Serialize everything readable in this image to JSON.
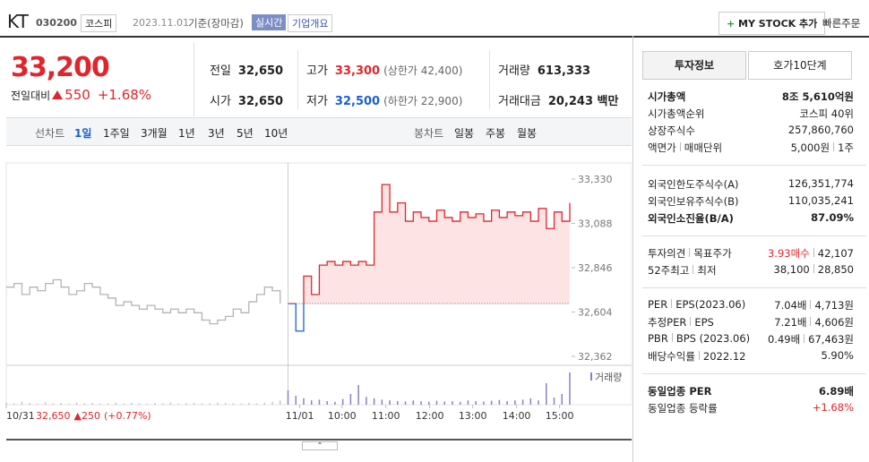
{
  "header": {
    "name": "KT",
    "code": "030200",
    "market": "코스피",
    "date": "2023.11.01",
    "basis": "기준(장마감)",
    "realtime": "실시간",
    "company": "기업개요",
    "mystock": "MY STOCK 추가",
    "quick": "빠른주문"
  },
  "price": {
    "value": "33,200",
    "change_label": "전일대비",
    "change": "550",
    "rate": "+1.68%"
  },
  "summary": [
    {
      "label": "전일",
      "value": "32,650"
    },
    {
      "label": "고가",
      "value": "33,300",
      "note": "(상한가 42,400)"
    },
    {
      "label": "거래량",
      "value": "613,333"
    },
    {
      "label": "시가",
      "value": "32,650"
    },
    {
      "label": "저가",
      "value": "32,500",
      "note": "(하한가 22,900)"
    },
    {
      "label": "거래대금",
      "value": "20,243 백만"
    }
  ],
  "tabs": {
    "line": "선차트",
    "periods": [
      "1일",
      "1주일",
      "3개월",
      "1년",
      "3년",
      "5년",
      "10년"
    ],
    "candle": "봉차트",
    "candles": [
      "일봉",
      "주봉",
      "월봉"
    ]
  },
  "chart_data": {
    "type": "line",
    "xlim": [
      0,
      72
    ],
    "xticks": [
      {
        "value": 0,
        "label": "10/31"
      },
      {
        "value": 37.5,
        "label": "11/01"
      },
      {
        "value": 42.9,
        "label": "10:00"
      },
      {
        "value": 48.5,
        "label": "11:00"
      },
      {
        "value": 54.1,
        "label": "12:00"
      },
      {
        "value": 59.6,
        "label": "13:00"
      },
      {
        "value": 65.2,
        "label": "14:00"
      },
      {
        "value": 70.7,
        "label": "15:00"
      }
    ],
    "ylim": [
      32362,
      33330
    ],
    "yticks": [
      {
        "value": 33330,
        "label": "33,330"
      },
      {
        "value": 33088,
        "label": "33,088"
      },
      {
        "value": 32846,
        "label": "32,846"
      },
      {
        "value": 32604,
        "label": "32,604"
      },
      {
        "value": 32362,
        "label": "32,362"
      }
    ],
    "base": 32650,
    "series": [
      {
        "color": "#b4b4b4",
        "values": [
          32740,
          32760,
          32700,
          32740,
          32720,
          32760,
          32780,
          32740,
          32700,
          32720,
          32760,
          32740,
          32700,
          32680,
          32640,
          32660,
          32640,
          32620,
          32640,
          32620,
          32600,
          32620,
          32600,
          32620,
          32600,
          32560,
          32540,
          32560,
          32580,
          32620,
          32600,
          32660,
          32700,
          32740,
          32720,
          32650
        ]
      },
      {
        "color": "#e0262c",
        "below_color": "#1760d6",
        "fill": "#fde3e4",
        "values": [
          32650,
          32500,
          32800,
          32700,
          32860,
          32880,
          32860,
          32880,
          32860,
          32880,
          32860,
          33150,
          33300,
          33150,
          33200,
          33100,
          33150,
          33120,
          33100,
          33160,
          33120,
          33100,
          33150,
          33120,
          33140,
          33100,
          33160,
          33120,
          33150,
          33130,
          33150,
          33100,
          33170,
          33060,
          33150,
          33100,
          33200
        ]
      }
    ],
    "volume_label": "거래량",
    "vlim": [
      0,
      100
    ],
    "volumes": [
      6,
      4,
      8,
      5,
      3,
      7,
      4,
      5,
      3,
      6,
      4,
      5,
      3,
      4,
      6,
      3,
      5,
      4,
      3,
      5,
      4,
      6,
      3,
      4,
      5,
      3,
      4,
      6,
      5,
      4,
      3,
      5,
      4,
      6,
      8,
      12,
      40,
      25,
      18,
      12,
      14,
      10,
      8,
      16,
      30,
      55,
      22,
      18,
      14,
      12,
      10,
      9,
      12,
      10,
      8,
      11,
      9,
      10,
      8,
      12,
      10,
      9,
      11,
      13,
      10,
      12,
      14,
      18,
      12,
      60,
      20,
      30,
      90
    ],
    "footer": {
      "date": "10/31",
      "close": "32,650",
      "change": "250",
      "rate": "(+0.77%)"
    }
  },
  "info": {
    "tabs": [
      "투자정보",
      "호가10단계"
    ],
    "sections": [
      [
        {
          "label": [
            "시가총액"
          ],
          "value": [
            "8조 5,610억원"
          ],
          "bold": true
        },
        {
          "label": [
            "시가총액순위"
          ],
          "value": [
            "코스피 40위"
          ]
        },
        {
          "label": [
            "상장주식수"
          ],
          "value": [
            "257,860,760"
          ]
        },
        {
          "label": [
            "액면가",
            "매매단위"
          ],
          "value": [
            "5,000원",
            "1주"
          ]
        }
      ],
      [
        {
          "label": [
            "외국인한도주식수(A)"
          ],
          "value": [
            "126,351,774"
          ]
        },
        {
          "label": [
            "외국인보유주식수(B)"
          ],
          "value": [
            "110,035,241"
          ]
        },
        {
          "label": [
            "외국인소진율(B/A)"
          ],
          "value": [
            "87.09%"
          ],
          "bold": true
        }
      ],
      [
        {
          "label": [
            "투자의견",
            "목표주가"
          ],
          "value": [
            "3.93매수",
            "42,107"
          ]
        },
        {
          "label": [
            "52주최고",
            "최저"
          ],
          "value": [
            "38,100",
            "28,850"
          ]
        }
      ],
      [
        {
          "label": [
            "PER",
            "EPS(2023.06)"
          ],
          "value": [
            "7.04배",
            "4,713원"
          ]
        },
        {
          "label": [
            "추정PER",
            "EPS"
          ],
          "value": [
            "7.21배",
            "4,606원"
          ]
        },
        {
          "label": [
            "PBR",
            "BPS (2023.06)"
          ],
          "value": [
            "0.49배",
            "67,463원"
          ]
        },
        {
          "label": [
            "배당수익률",
            "2022.12"
          ],
          "value": [
            "5.90%"
          ]
        }
      ],
      [
        {
          "label": [
            "동일업종 PER"
          ],
          "value": [
            "6.89배"
          ],
          "bold": true
        },
        {
          "label": [
            "동일업종 등락률"
          ],
          "value": [
            "+1.68%"
          ],
          "red": true
        }
      ]
    ]
  }
}
